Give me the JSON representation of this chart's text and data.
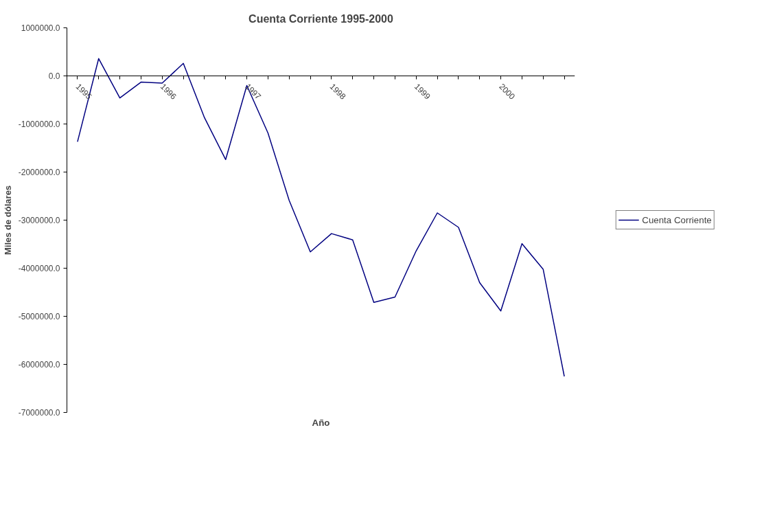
{
  "chart_data": {
    "type": "line",
    "title": "Cuenta Corriente 1995-2000",
    "xlabel": "Año",
    "ylabel": "Miles de dólares",
    "categories": [
      "1995",
      null,
      null,
      null,
      "1996",
      null,
      null,
      null,
      "1997",
      null,
      null,
      null,
      "1998",
      null,
      null,
      null,
      "1999",
      null,
      null,
      null,
      "2000",
      null,
      null,
      null
    ],
    "series": [
      {
        "name": "Cuenta Corriente",
        "color": "#000080",
        "values": [
          -1370000,
          360000,
          -460000,
          -130000,
          -150000,
          260000,
          -870000,
          -1740000,
          -200000,
          -1190000,
          -2590000,
          -3660000,
          -3280000,
          -3410000,
          -4710000,
          -4600000,
          -3640000,
          -2850000,
          -3150000,
          -4300000,
          -4890000,
          -3490000,
          -4020000,
          -6250000
        ]
      }
    ],
    "ylim": [
      -7000000,
      1000000
    ],
    "yticks": [
      {
        "value": -7000000,
        "label": "-7000000.0"
      },
      {
        "value": -6000000,
        "label": "-6000000.0"
      },
      {
        "value": -5000000,
        "label": "-5000000.0"
      },
      {
        "value": -4000000,
        "label": "-4000000.0"
      },
      {
        "value": -3000000,
        "label": "-3000000.0"
      },
      {
        "value": -2000000,
        "label": "-2000000.0"
      },
      {
        "value": -1000000,
        "label": "-1000000.0"
      },
      {
        "value": 0,
        "label": "0.0"
      },
      {
        "value": 1000000,
        "label": "1000000.0"
      }
    ],
    "grid": false,
    "legend": "right",
    "marker": "none",
    "line_style": "solid"
  }
}
